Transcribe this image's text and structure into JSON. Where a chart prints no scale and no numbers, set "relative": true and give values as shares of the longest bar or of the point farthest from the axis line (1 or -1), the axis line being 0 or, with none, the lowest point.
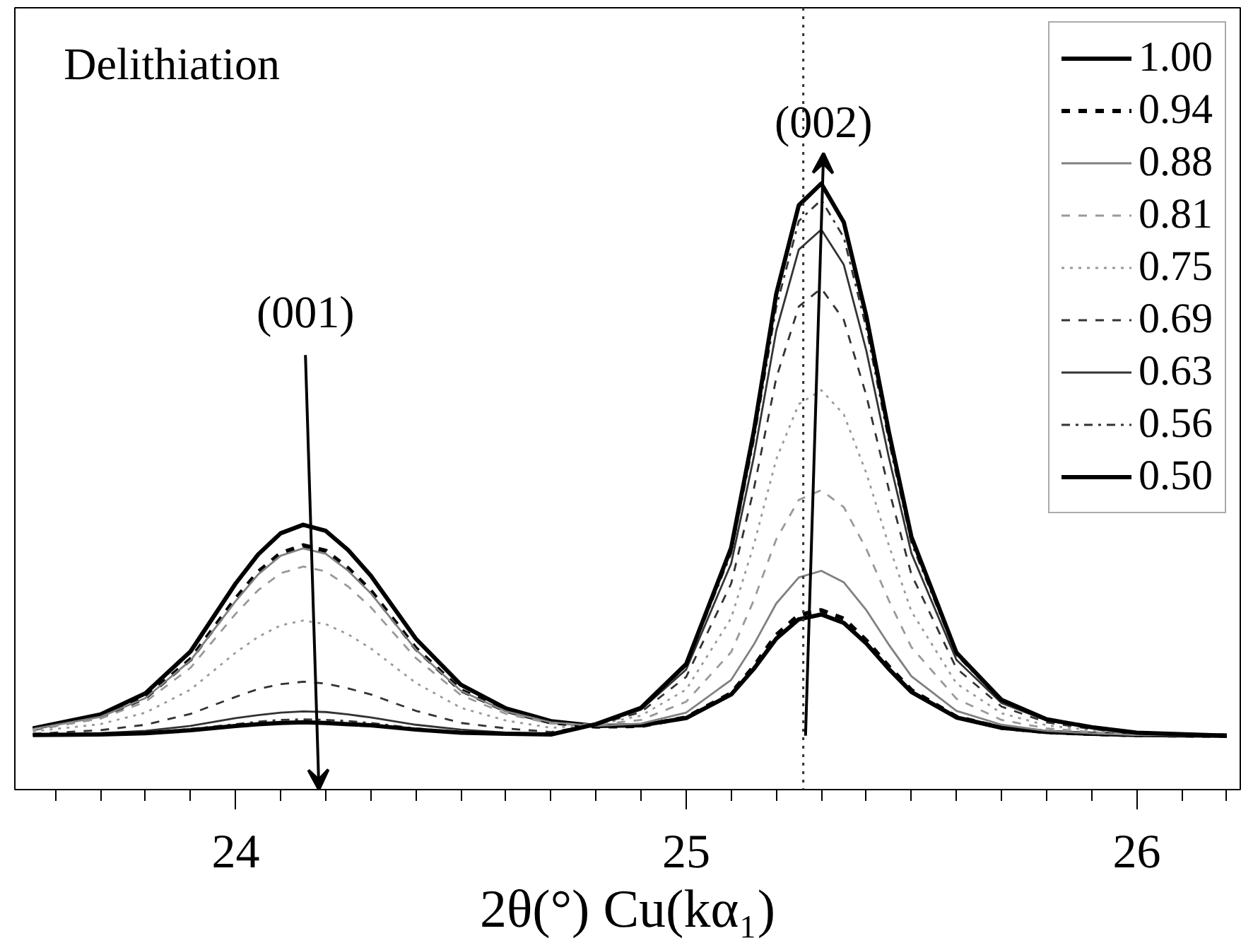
{
  "chart_data": {
    "type": "line",
    "relative": true,
    "xlabel": "2θ(°) Cu(kα₁)",
    "annotations": [
      "Delithiation",
      "(001)",
      "(002)"
    ],
    "x": [
      23.55,
      23.7,
      23.8,
      23.9,
      24.0,
      24.05,
      24.1,
      24.15,
      24.2,
      24.25,
      24.3,
      24.4,
      24.5,
      24.6,
      24.7,
      24.8,
      24.9,
      25.0,
      25.1,
      25.15,
      25.2,
      25.25,
      25.3,
      25.35,
      25.4,
      25.45,
      25.5,
      25.6,
      25.7,
      25.8,
      25.9,
      26.0,
      26.2
    ],
    "xlim": [
      23.51,
      26.23
    ],
    "xticks": [
      {
        "value": 23.6,
        "label": null
      },
      {
        "value": 23.7,
        "label": null
      },
      {
        "value": 23.8,
        "label": null
      },
      {
        "value": 23.9,
        "label": null
      },
      24,
      {
        "value": 24.1,
        "label": null
      },
      {
        "value": 24.2,
        "label": null
      },
      {
        "value": 24.3,
        "label": null
      },
      {
        "value": 24.4,
        "label": null
      },
      {
        "value": 24.5,
        "label": null
      },
      {
        "value": 24.6,
        "label": null
      },
      {
        "value": 24.7,
        "label": null
      },
      {
        "value": 24.8,
        "label": null
      },
      {
        "value": 24.9,
        "label": null
      },
      25,
      {
        "value": 25.1,
        "label": null
      },
      {
        "value": 25.2,
        "label": null
      },
      {
        "value": 25.3,
        "label": null
      },
      {
        "value": 25.4,
        "label": null
      },
      {
        "value": 25.5,
        "label": null
      },
      {
        "value": 25.6,
        "label": null
      },
      {
        "value": 25.7,
        "label": null
      },
      {
        "value": 25.8,
        "label": null
      },
      {
        "value": 25.9,
        "label": null
      },
      26,
      {
        "value": 26.1,
        "label": null
      },
      {
        "value": 26.2,
        "label": null
      }
    ],
    "tick_labels": "x",
    "grid": false,
    "legend": "top right",
    "marker": "none",
    "ref_lines": [
      {
        "axis": "x",
        "value": 25.26,
        "line_style": "dotted",
        "color": "#333333"
      }
    ],
    "series": [
      {
        "name": "1.00",
        "color": "#000000",
        "line_style": "solid",
        "values": [
          0.101,
          0.124,
          0.159,
          0.228,
          0.34,
          0.388,
          0.423,
          0.437,
          0.427,
          0.395,
          0.353,
          0.249,
          0.173,
          0.134,
          0.113,
          0.105,
          0.106,
          0.118,
          0.157,
          0.199,
          0.249,
          0.281,
          0.289,
          0.275,
          0.241,
          0.199,
          0.161,
          0.119,
          0.102,
          0.095,
          0.092,
          0.09,
          0.089
        ]
      },
      {
        "name": "0.94",
        "color": "#000000",
        "line_style": "dashed",
        "values": [
          0.1,
          0.12,
          0.152,
          0.215,
          0.315,
          0.359,
          0.39,
          0.403,
          0.394,
          0.365,
          0.328,
          0.233,
          0.164,
          0.13,
          0.111,
          0.104,
          0.105,
          0.119,
          0.159,
          0.203,
          0.255,
          0.288,
          0.296,
          0.282,
          0.246,
          0.203,
          0.164,
          0.12,
          0.102,
          0.095,
          0.092,
          0.09,
          0.089
        ]
      },
      {
        "name": "0.88",
        "color": "#808080",
        "line_style": "solid",
        "values": [
          0.1,
          0.12,
          0.151,
          0.213,
          0.311,
          0.355,
          0.386,
          0.398,
          0.389,
          0.361,
          0.324,
          0.231,
          0.163,
          0.129,
          0.111,
          0.105,
          0.109,
          0.127,
          0.181,
          0.239,
          0.307,
          0.35,
          0.361,
          0.342,
          0.296,
          0.239,
          0.187,
          0.13,
          0.107,
          0.097,
          0.093,
          0.09,
          0.089
        ]
      },
      {
        "name": "0.81",
        "color": "#999999",
        "line_style": "dashed",
        "values": [
          0.099,
          0.117,
          0.145,
          0.201,
          0.29,
          0.329,
          0.357,
          0.368,
          0.36,
          0.335,
          0.301,
          0.217,
          0.156,
          0.125,
          0.109,
          0.107,
          0.115,
          0.145,
          0.227,
          0.312,
          0.413,
          0.478,
          0.494,
          0.466,
          0.397,
          0.312,
          0.235,
          0.15,
          0.115,
          0.101,
          0.095,
          0.091,
          0.089
        ]
      },
      {
        "name": "0.75",
        "color": "#999999",
        "line_style": "dotted",
        "values": [
          0.096,
          0.108,
          0.127,
          0.165,
          0.226,
          0.252,
          0.271,
          0.279,
          0.273,
          0.256,
          0.233,
          0.176,
          0.135,
          0.114,
          0.102,
          0.107,
          0.122,
          0.165,
          0.283,
          0.403,
          0.545,
          0.636,
          0.659,
          0.619,
          0.522,
          0.403,
          0.294,
          0.175,
          0.126,
          0.106,
          0.098,
          0.092,
          0.089
        ]
      },
      {
        "name": "0.69",
        "color": "#333333",
        "line_style": "dashed",
        "values": [
          0.092,
          0.098,
          0.107,
          0.125,
          0.153,
          0.166,
          0.174,
          0.178,
          0.175,
          0.167,
          0.157,
          0.13,
          0.11,
          0.101,
          0.095,
          0.107,
          0.128,
          0.186,
          0.34,
          0.495,
          0.679,
          0.797,
          0.827,
          0.775,
          0.65,
          0.495,
          0.355,
          0.2,
          0.137,
          0.111,
          0.1,
          0.093,
          0.089
        ]
      },
      {
        "name": "0.63",
        "color": "#333333",
        "line_style": "solid",
        "values": [
          0.09,
          0.093,
          0.097,
          0.105,
          0.118,
          0.123,
          0.127,
          0.129,
          0.128,
          0.124,
          0.119,
          0.107,
          0.099,
          0.094,
          0.092,
          0.107,
          0.132,
          0.198,
          0.373,
          0.548,
          0.757,
          0.891,
          0.924,
          0.866,
          0.724,
          0.548,
          0.39,
          0.214,
          0.143,
          0.114,
          0.102,
          0.093,
          0.089
        ]
      },
      {
        "name": "0.56",
        "color": "#333333",
        "line_style": "dashdot",
        "values": [
          0.09,
          0.092,
          0.094,
          0.1,
          0.108,
          0.112,
          0.115,
          0.116,
          0.115,
          0.113,
          0.11,
          0.101,
          0.095,
          0.093,
          0.091,
          0.108,
          0.134,
          0.204,
          0.39,
          0.575,
          0.796,
          0.938,
          0.973,
          0.911,
          0.761,
          0.575,
          0.407,
          0.222,
          0.146,
          0.116,
          0.102,
          0.093,
          0.089
        ]
      },
      {
        "name": "0.50",
        "color": "#000000",
        "line_style": "solid",
        "values": [
          0.09,
          0.091,
          0.093,
          0.098,
          0.105,
          0.108,
          0.11,
          0.111,
          0.11,
          0.108,
          0.106,
          0.099,
          0.094,
          0.092,
          0.091,
          0.108,
          0.135,
          0.207,
          0.399,
          0.59,
          0.818,
          0.964,
          1.0,
          0.936,
          0.781,
          0.59,
          0.417,
          0.226,
          0.148,
          0.116,
          0.103,
          0.094,
          0.089
        ]
      }
    ]
  }
}
